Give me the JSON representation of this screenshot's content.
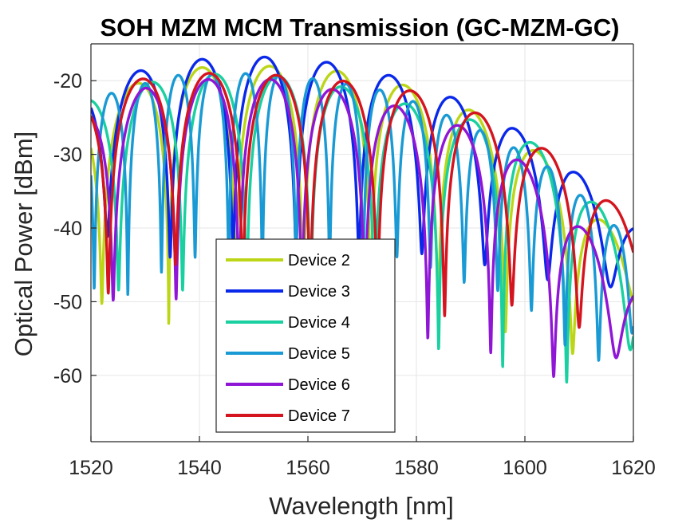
{
  "chart_data": {
    "type": "line",
    "title": "SOH MZM MCM Transmission (GC-MZM-GC)",
    "xlabel": "Wavelength [nm]",
    "ylabel": "Optical Power [dBm]",
    "xlim": [
      1520,
      1620
    ],
    "ylim": [
      -69,
      -15
    ],
    "xticks": [
      1520,
      1540,
      1560,
      1580,
      1600,
      1620
    ],
    "yticks": [
      -60,
      -50,
      -40,
      -30,
      -20
    ],
    "grid": true,
    "legend": {
      "placement": "lower-center",
      "entries": [
        "Device 2",
        "Device 3",
        "Device 4",
        "Device 5",
        "Device 6",
        "Device 7"
      ]
    },
    "series": [
      {
        "name": "Device 2",
        "color": "#bcd617",
        "period": 12.4,
        "minima": [
          1528.2,
          1540.5,
          1552.9,
          1565.4,
          1577.8,
          1590.2,
          1602.6,
          1615.0
        ],
        "envelope": [
          [
            1520,
            -23
          ],
          [
            1535,
            -18.3
          ],
          [
            1555,
            -18
          ],
          [
            1570,
            -19
          ],
          [
            1582,
            -21.5
          ],
          [
            1590,
            -24
          ],
          [
            1598,
            -27
          ],
          [
            1607,
            -32.5
          ],
          [
            1620,
            -44
          ]
        ],
        "depth": [
          [
            1520,
            -44
          ],
          [
            1528,
            -69
          ],
          [
            1540,
            -51.5
          ],
          [
            1552,
            -47
          ],
          [
            1565,
            -48
          ],
          [
            1578,
            -49
          ],
          [
            1590,
            -52
          ],
          [
            1602,
            -56
          ],
          [
            1615,
            -58
          ],
          [
            1620,
            -52
          ]
        ]
      },
      {
        "name": "Device 3",
        "color": "#0a28ea",
        "period": 11.6,
        "minima": [
          1528.8,
          1540.4,
          1552.0,
          1563.6,
          1575.2,
          1586.8,
          1598.4,
          1610.0,
          1621.6
        ],
        "envelope": [
          [
            1520,
            -21
          ],
          [
            1533,
            -17.6
          ],
          [
            1545,
            -16.8
          ],
          [
            1557,
            -16.8
          ],
          [
            1570,
            -18.2
          ],
          [
            1583,
            -21
          ],
          [
            1597,
            -26
          ],
          [
            1608,
            -31.5
          ],
          [
            1620,
            -40
          ]
        ],
        "depth": [
          [
            1520,
            -40
          ],
          [
            1530,
            -44
          ],
          [
            1540,
            -44
          ],
          [
            1552,
            -42
          ],
          [
            1564,
            -44
          ],
          [
            1575,
            -43
          ],
          [
            1587,
            -44
          ],
          [
            1598,
            -46
          ],
          [
            1610,
            -48
          ],
          [
            1620,
            -48
          ]
        ]
      },
      {
        "name": "Device 4",
        "color": "#1ad0a0",
        "period": 11.8,
        "minima": [
          1531.0,
          1542.8,
          1554.6,
          1566.4,
          1578.2,
          1590.0,
          1601.8,
          1613.6
        ],
        "envelope": [
          [
            1520,
            -22.5
          ],
          [
            1536,
            -19.2
          ],
          [
            1550,
            -19.0
          ],
          [
            1562,
            -20
          ],
          [
            1575,
            -22.5
          ],
          [
            1587,
            -25
          ],
          [
            1597,
            -26
          ],
          [
            1608,
            -32
          ],
          [
            1620,
            -43
          ]
        ],
        "depth": [
          [
            1520,
            -48
          ],
          [
            1531,
            -49
          ],
          [
            1543,
            -48
          ],
          [
            1555,
            -52
          ],
          [
            1566,
            -53
          ],
          [
            1578,
            -55
          ],
          [
            1590,
            -58
          ],
          [
            1602,
            -60
          ],
          [
            1614,
            -62
          ],
          [
            1620,
            -56
          ]
        ]
      },
      {
        "name": "Device 5",
        "color": "#1a9ad4",
        "period": 6.2,
        "minima": [
          1523.7,
          1529.9,
          1536.1,
          1542.3,
          1548.5,
          1554.7,
          1560.9,
          1567.1,
          1573.3,
          1579.5,
          1585.7,
          1591.9,
          1598.1,
          1604.3,
          1610.5,
          1616.7
        ],
        "envelope": [
          [
            1520,
            -22.5
          ],
          [
            1535,
            -19.3
          ],
          [
            1550,
            -19
          ],
          [
            1562,
            -19.8
          ],
          [
            1575,
            -21.5
          ],
          [
            1585,
            -24.5
          ],
          [
            1594,
            -27.5
          ],
          [
            1605,
            -32
          ],
          [
            1614,
            -38
          ],
          [
            1620,
            -42
          ]
        ],
        "depth": [
          [
            1520,
            -48
          ],
          [
            1524,
            -50
          ],
          [
            1530,
            -48
          ],
          [
            1536,
            -44
          ],
          [
            1542,
            -44
          ],
          [
            1548,
            -45
          ],
          [
            1555,
            -47
          ],
          [
            1561,
            -46
          ],
          [
            1567,
            -45
          ],
          [
            1573,
            -43
          ],
          [
            1580,
            -45
          ],
          [
            1586,
            -46
          ],
          [
            1592,
            -49
          ],
          [
            1598,
            -48
          ],
          [
            1604,
            -54
          ],
          [
            1611,
            -58
          ],
          [
            1617,
            -58
          ],
          [
            1620,
            -54
          ]
        ]
      },
      {
        "name": "Device 6",
        "color": "#9016d6",
        "period": 11.6,
        "minima": [
          1529.9,
          1541.5,
          1553.1,
          1564.7,
          1576.3,
          1587.9,
          1599.5,
          1611.1
        ],
        "envelope": [
          [
            1520,
            -24
          ],
          [
            1530,
            -21
          ],
          [
            1545,
            -19.5
          ],
          [
            1557,
            -20
          ],
          [
            1570,
            -22
          ],
          [
            1583,
            -25
          ],
          [
            1594,
            -27.5
          ],
          [
            1604,
            -34
          ],
          [
            1615,
            -44
          ],
          [
            1620,
            -48
          ]
        ],
        "depth": [
          [
            1520,
            -48
          ],
          [
            1530,
            -52.5
          ],
          [
            1541,
            -47
          ],
          [
            1553,
            -47
          ],
          [
            1565,
            -50
          ],
          [
            1576,
            -54
          ],
          [
            1588,
            -56
          ],
          [
            1600,
            -58
          ],
          [
            1611,
            -62.5
          ],
          [
            1620,
            -55
          ]
        ]
      },
      {
        "name": "Device 7",
        "color": "#d4141e",
        "period": 12.4,
        "minima": [
          1517.0,
          1529.4,
          1541.8,
          1554.2,
          1566.6,
          1579.0,
          1591.4,
          1603.8,
          1616.2
        ],
        "envelope": [
          [
            1520,
            -22
          ],
          [
            1525,
            -20.3
          ],
          [
            1536,
            -19
          ],
          [
            1548,
            -19
          ],
          [
            1560,
            -19.5
          ],
          [
            1572,
            -20.5
          ],
          [
            1584,
            -22
          ],
          [
            1596,
            -26
          ],
          [
            1609,
            -31.6
          ],
          [
            1620,
            -39.5
          ]
        ],
        "depth": [
          [
            1520,
            -51
          ],
          [
            1529,
            -45
          ],
          [
            1542,
            -45
          ],
          [
            1554,
            -49
          ],
          [
            1566,
            -51
          ],
          [
            1579,
            -54
          ],
          [
            1591,
            -50
          ],
          [
            1604,
            -51
          ],
          [
            1616,
            -56
          ],
          [
            1620,
            -50
          ]
        ]
      }
    ]
  }
}
